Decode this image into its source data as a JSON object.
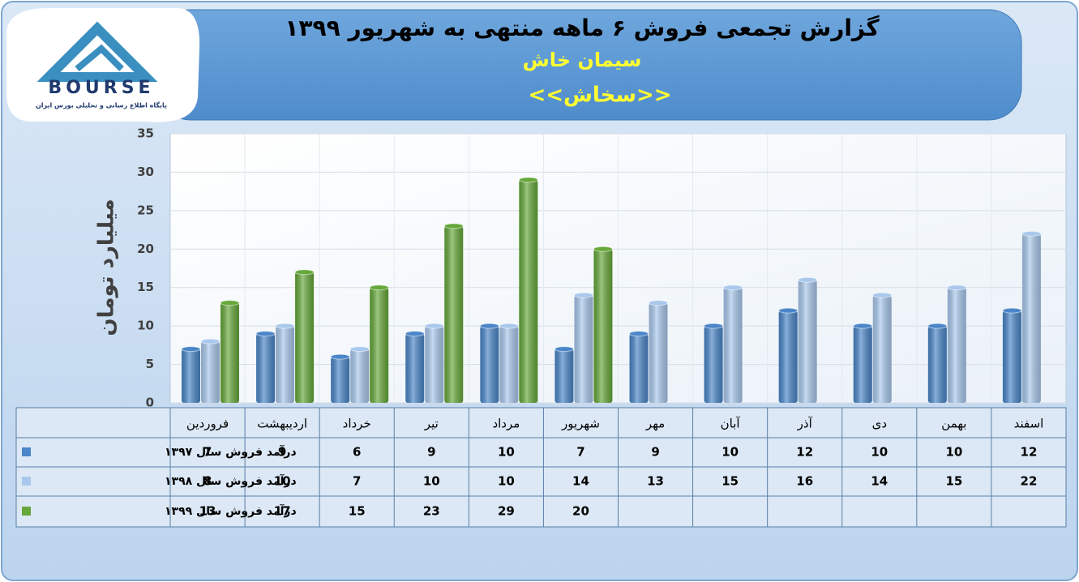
{
  "logo": {
    "text": "BOURSE",
    "caption": "پایگاه اطلاع رسانی و تحلیلی بورس ایران"
  },
  "chart_data": {
    "type": "bar",
    "title": "گزارش تجمعی فروش ۶ ماهه منتهی به شهریور ۱۳۹۹",
    "subtitle": [
      "سیمان خاش",
      "<<سخاش>>"
    ],
    "y_label": "میلیارد تومان",
    "categories": [
      "فروردین",
      "اردیبهشت",
      "خرداد",
      "تیر",
      "مرداد",
      "شهریور",
      "مهر",
      "آبان",
      "آذر",
      "دی",
      "بهمن",
      "اسفند"
    ],
    "series": [
      {
        "name": "درآمد فروش سال ۱۳۹۷",
        "color": "#4a86c8",
        "values": [
          7,
          9,
          6,
          9,
          10,
          7,
          9,
          10,
          12,
          10,
          10,
          12
        ]
      },
      {
        "name": "درآمد فروش سال ۱۳۹۸",
        "color": "#a9c8ec",
        "values": [
          8,
          10,
          7,
          10,
          10,
          14,
          13,
          15,
          16,
          14,
          15,
          22
        ]
      },
      {
        "name": "درآمد فروش سال ۱۳۹۹",
        "color": "#66a83a",
        "values": [
          13,
          17,
          15,
          23,
          29,
          20,
          null,
          null,
          null,
          null,
          null,
          null
        ]
      }
    ],
    "ylim": [
      0,
      35
    ],
    "yticks": [
      0,
      5,
      10,
      15,
      20,
      25,
      30,
      35
    ],
    "grid": true
  }
}
